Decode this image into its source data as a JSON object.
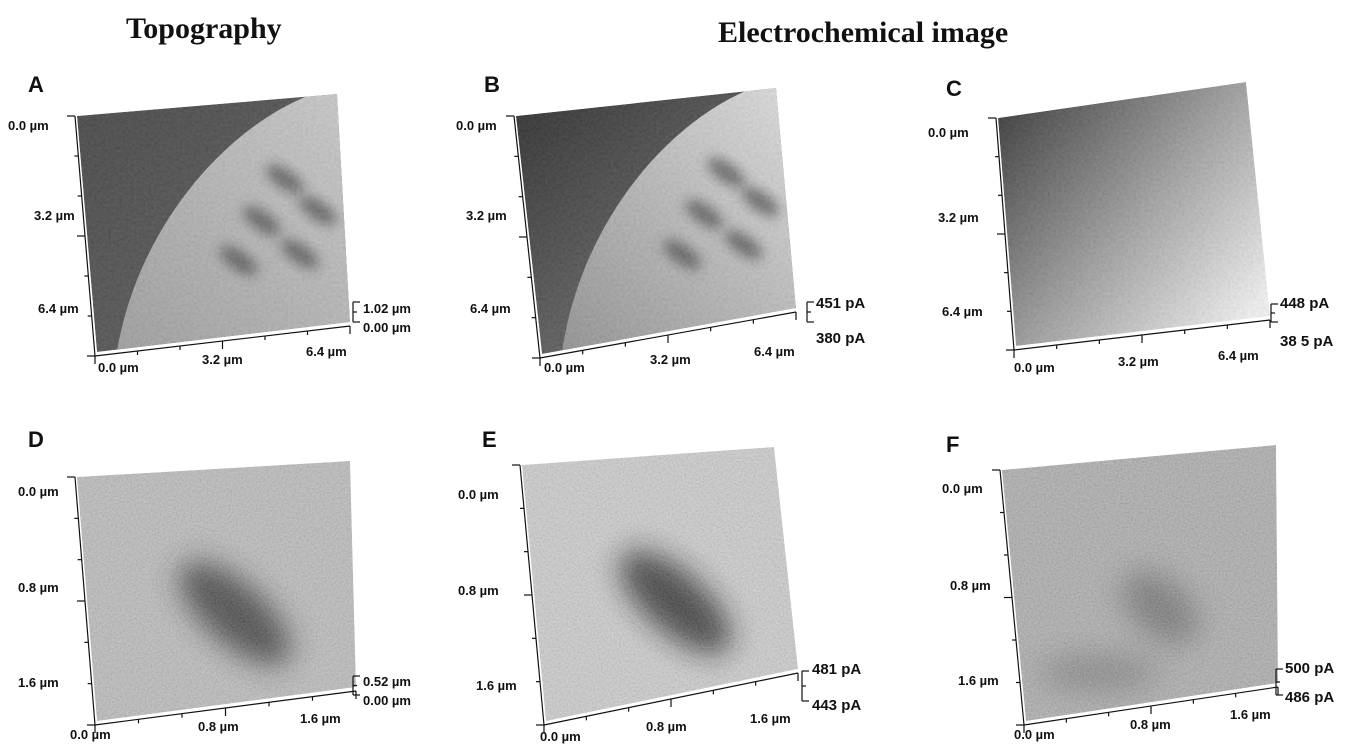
{
  "headings": {
    "left": "Topography",
    "right": "Electrochemical image"
  },
  "panels": [
    {
      "letter": "A",
      "y_labels": [
        "0.0 µm",
        "3.2 µm",
        "6.4 µm"
      ],
      "x_labels": [
        "0.0 µm",
        "3.2 µm",
        "6.4 µm"
      ],
      "scale_top": "1.02 µm",
      "scale_bottom": "0.00 µm",
      "shading": "boundary",
      "colors": {
        "dark": "#3a3a3a",
        "light": "#c8c8c8"
      }
    },
    {
      "letter": "B",
      "y_labels": [
        "0.0 µm",
        "3.2 µm",
        "6.4 µm"
      ],
      "x_labels": [
        "0.0 µm",
        "3.2 µm",
        "6.4 µm"
      ],
      "scale_top": "451  pA",
      "scale_bottom": "380  pA",
      "shading": "boundary-gradient",
      "colors": {
        "dark": "#1e1e1e",
        "light": "#dedede"
      }
    },
    {
      "letter": "C",
      "y_labels": [
        "0.0 µm",
        "3.2 µm",
        "6.4 µm"
      ],
      "x_labels": [
        "0.0 µm",
        "3.2 µm",
        "6.4 µm"
      ],
      "scale_top": "448  pA",
      "scale_bottom": "38 5  pA",
      "shading": "diagonal-gradient",
      "colors": {
        "dark": "#202020",
        "light": "#f4f4f4"
      }
    },
    {
      "letter": "D",
      "y_labels": [
        "0.0 µm",
        "0.8 µm",
        "1.6 µm"
      ],
      "x_labels": [
        "0.0 µm",
        "0.8 µm",
        "1.6 µm"
      ],
      "scale_top": "0.52 µm",
      "scale_bottom": "0.00 µm",
      "shading": "pit",
      "colors": {
        "dark": "#2c2c2c",
        "light": "#b9b9b9"
      }
    },
    {
      "letter": "E",
      "y_labels": [
        "0.0 µm",
        "0.8 µm",
        "1.6 µm"
      ],
      "x_labels": [
        "0.0 µm",
        "0.8 µm",
        "1.6 µm"
      ],
      "scale_top": "481  pA",
      "scale_bottom": "443  pA",
      "shading": "pit",
      "colors": {
        "dark": "#1a1a1a",
        "light": "#cdcdcd"
      }
    },
    {
      "letter": "F",
      "y_labels": [
        "0.0 µm",
        "0.8 µm",
        "1.6 µm"
      ],
      "x_labels": [
        "0.0 µm",
        "0.8 µm",
        "1.6 µm"
      ],
      "scale_top": "500  pA",
      "scale_bottom": "486  pA",
      "shading": "faint-pit",
      "colors": {
        "dark": "#555555",
        "light": "#a9a9a9"
      }
    }
  ]
}
